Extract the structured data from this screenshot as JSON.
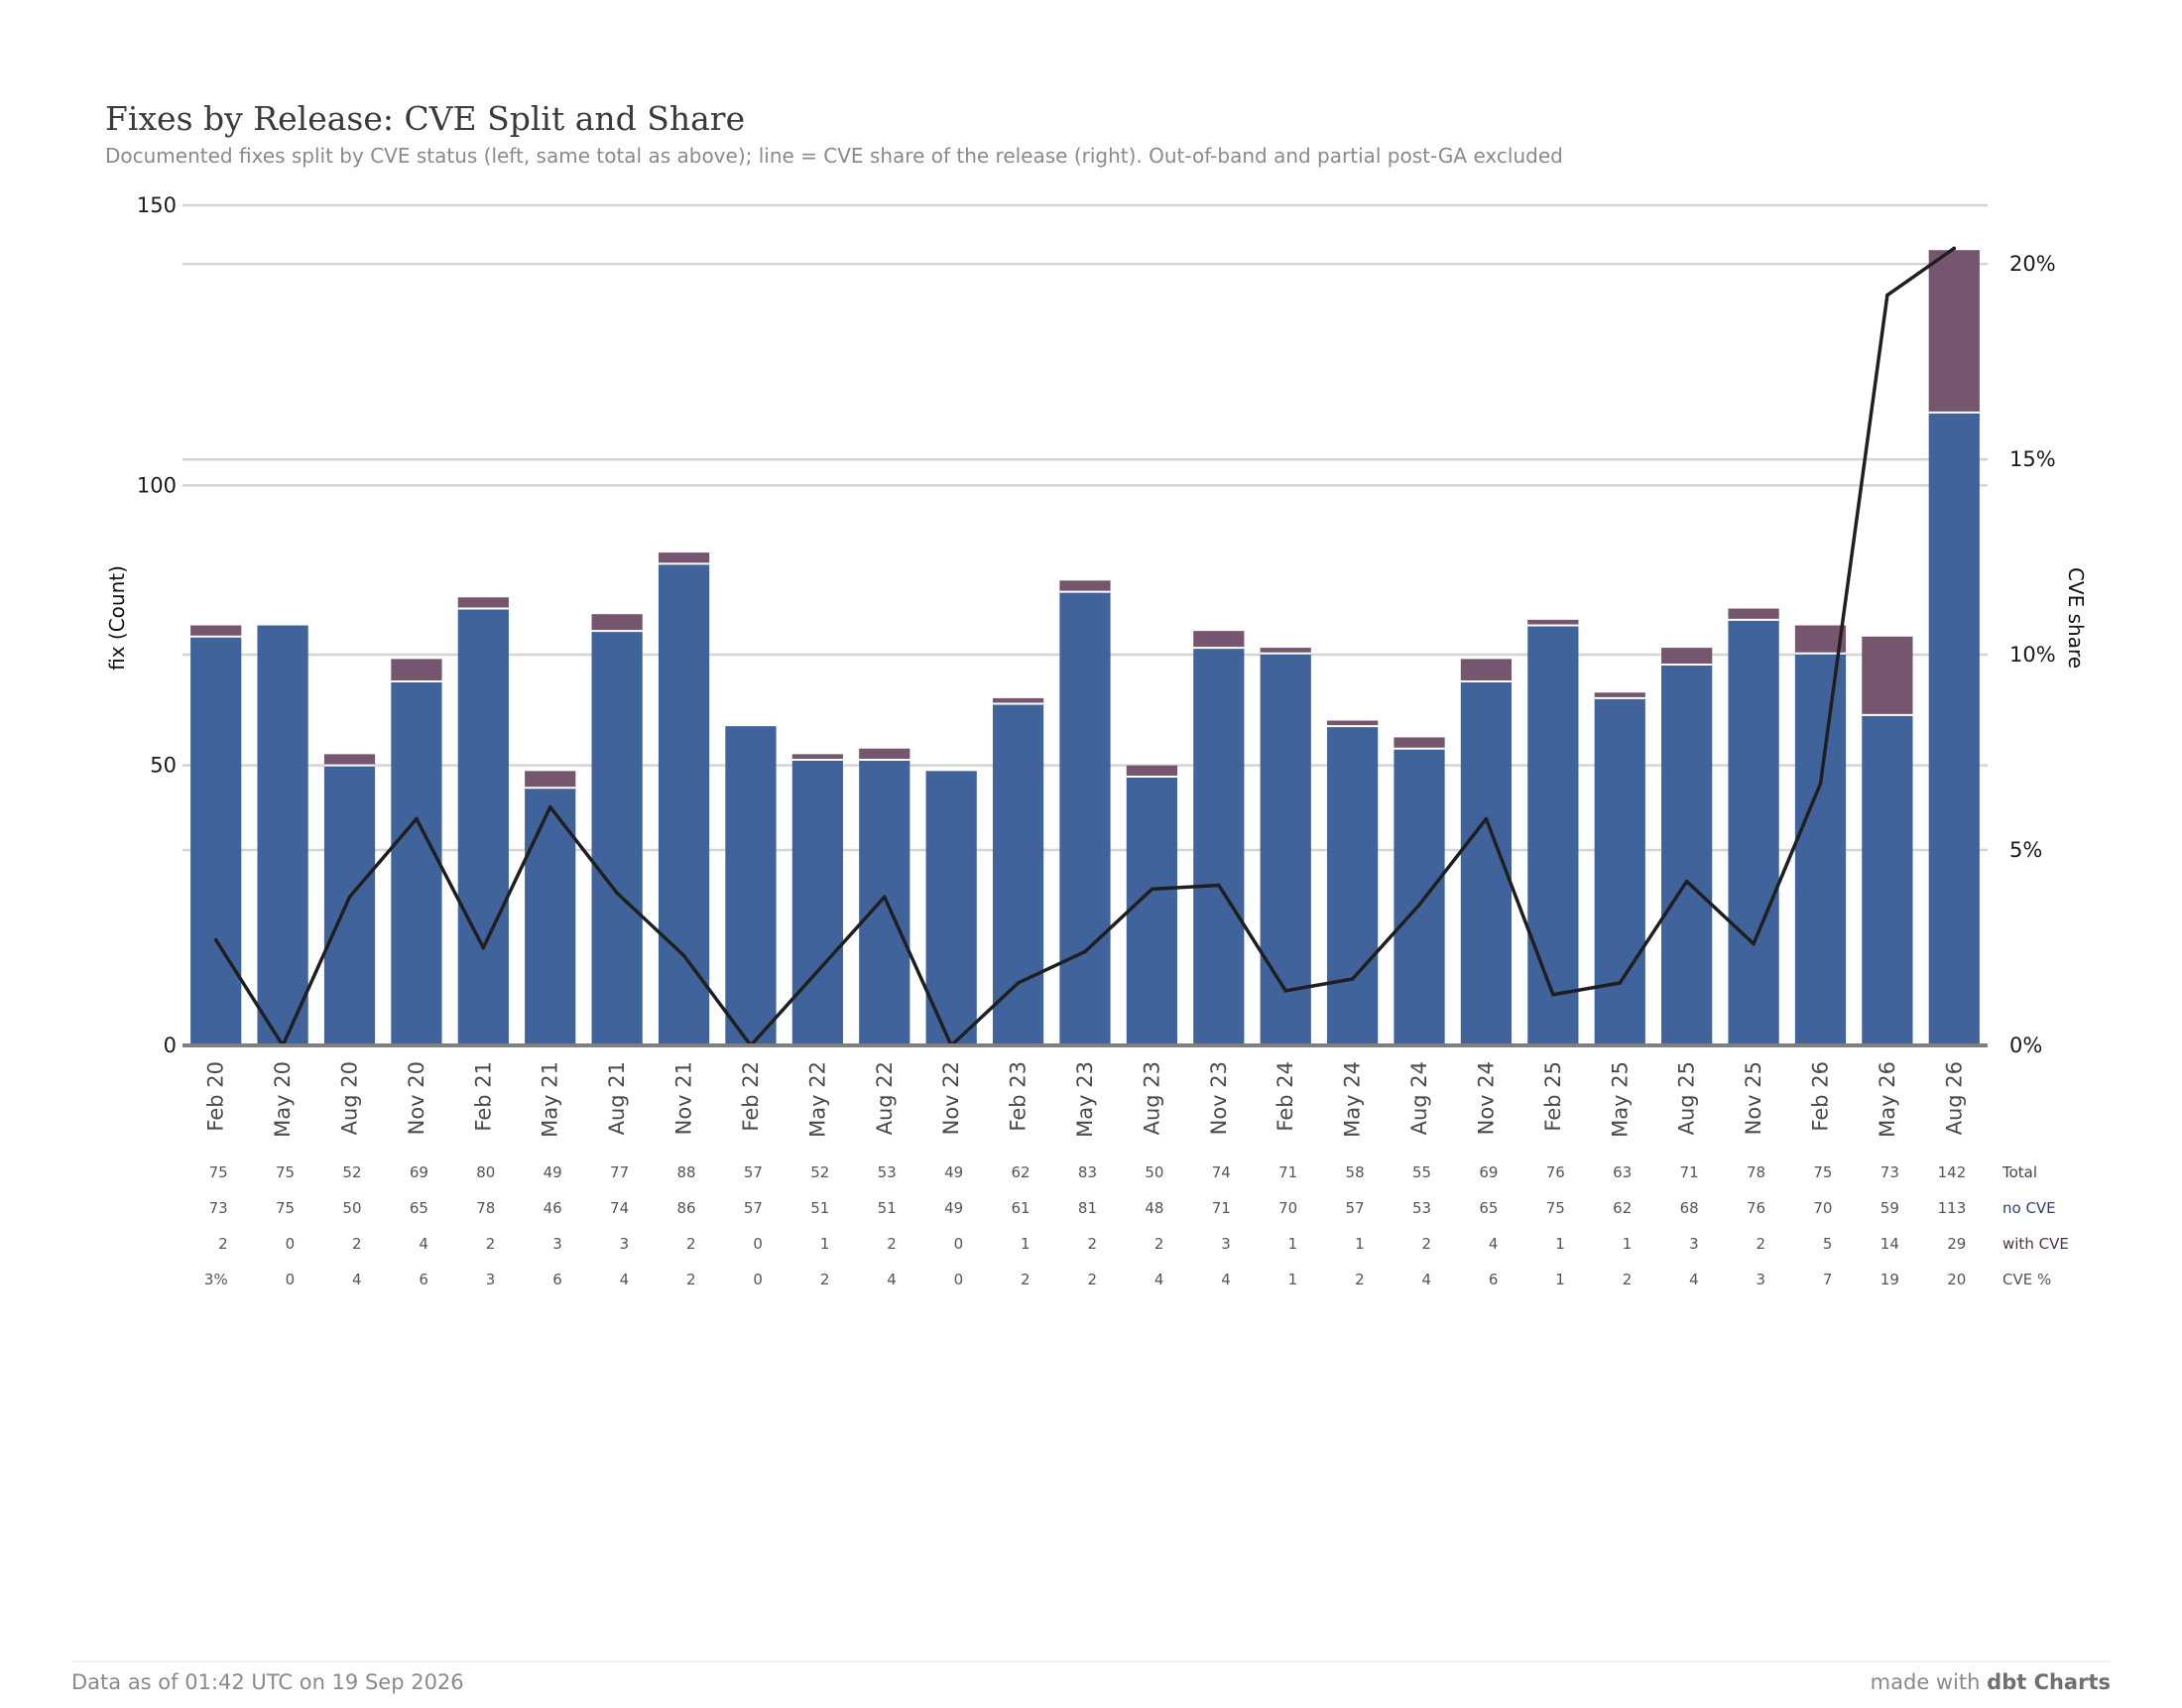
{
  "title": "Fixes by Release: CVE Split and Share",
  "subtitle": "Documented fixes split by CVE status (left, same total as above); line = CVE share of the release (right). Out-of-band and partial post-GA excluded",
  "footer": {
    "left": "Data as of 01:42 UTC on 19 Sep 2026",
    "right_prefix": "made with ",
    "right_brand": "dbt Charts"
  },
  "colors": {
    "no_cve": "#41639b",
    "with_cve": "#75566e",
    "line": "#1f1f1f",
    "grid": "#d4d4d4",
    "axis": "#7f7f7f"
  },
  "chart_data": {
    "type": "bar",
    "stacked": true,
    "title": "Fixes by Release: CVE Split and Share",
    "ylabel": "fix (Count)",
    "y2label": "CVE share",
    "ylim": [
      0,
      150
    ],
    "yticks": [
      0,
      50,
      100,
      150
    ],
    "y2lim": [
      0,
      21.5
    ],
    "y2ticks": [
      0,
      5,
      10,
      15,
      20
    ],
    "y2tick_labels": [
      "0%",
      "5%",
      "10%",
      "15%",
      "20%"
    ],
    "grid": true,
    "categories": [
      "Feb 20",
      "May 20",
      "Aug 20",
      "Nov 20",
      "Feb 21",
      "May 21",
      "Aug 21",
      "Nov 21",
      "Feb 22",
      "May 22",
      "Aug 22",
      "Nov 22",
      "Feb 23",
      "May 23",
      "Aug 23",
      "Nov 23",
      "Feb 24",
      "May 24",
      "Aug 24",
      "Nov 24",
      "Feb 25",
      "May 25",
      "Aug 25",
      "Nov 25",
      "Feb 26",
      "May 26",
      "Aug 26"
    ],
    "series": [
      {
        "name": "no CVE",
        "kind": "bar",
        "axis": "left",
        "values": [
          73,
          75,
          50,
          65,
          78,
          46,
          74,
          86,
          57,
          51,
          51,
          49,
          61,
          81,
          48,
          71,
          70,
          57,
          53,
          65,
          75,
          62,
          68,
          76,
          70,
          59,
          113
        ]
      },
      {
        "name": "with CVE",
        "kind": "bar",
        "axis": "left",
        "values": [
          2,
          0,
          2,
          4,
          2,
          3,
          3,
          2,
          0,
          1,
          2,
          0,
          1,
          2,
          2,
          3,
          1,
          1,
          2,
          4,
          1,
          1,
          3,
          2,
          5,
          14,
          29
        ]
      },
      {
        "name": "CVE %",
        "kind": "line",
        "axis": "right",
        "values": [
          2.7,
          0,
          3.8,
          5.8,
          2.5,
          6.1,
          3.9,
          2.3,
          0,
          1.9,
          3.8,
          0,
          1.6,
          2.4,
          4.0,
          4.1,
          1.4,
          1.7,
          3.6,
          5.8,
          1.3,
          1.6,
          4.2,
          2.6,
          6.7,
          19.2,
          20.4
        ]
      }
    ],
    "table": {
      "rows": [
        {
          "label": "Total",
          "values": [
            "75",
            "75",
            "52",
            "69",
            "80",
            "49",
            "77",
            "88",
            "57",
            "52",
            "53",
            "49",
            "62",
            "83",
            "50",
            "74",
            "71",
            "58",
            "55",
            "69",
            "76",
            "63",
            "71",
            "78",
            "75",
            "73",
            "142"
          ]
        },
        {
          "label": "no CVE",
          "values": [
            "73",
            "75",
            "50",
            "65",
            "78",
            "46",
            "74",
            "86",
            "57",
            "51",
            "51",
            "49",
            "61",
            "81",
            "48",
            "71",
            "70",
            "57",
            "53",
            "65",
            "75",
            "62",
            "68",
            "76",
            "70",
            "59",
            "113"
          ]
        },
        {
          "label": "with CVE",
          "values": [
            "2",
            "0",
            "2",
            "4",
            "2",
            "3",
            "3",
            "2",
            "0",
            "1",
            "2",
            "0",
            "1",
            "2",
            "2",
            "3",
            "1",
            "1",
            "2",
            "4",
            "1",
            "1",
            "3",
            "2",
            "5",
            "14",
            "29"
          ]
        },
        {
          "label": "CVE %",
          "values": [
            "3%",
            "0",
            "4",
            "6",
            "3",
            "6",
            "4",
            "2",
            "0",
            "2",
            "4",
            "0",
            "2",
            "2",
            "4",
            "4",
            "1",
            "2",
            "4",
            "6",
            "1",
            "2",
            "4",
            "3",
            "7",
            "19",
            "20"
          ]
        }
      ]
    }
  }
}
